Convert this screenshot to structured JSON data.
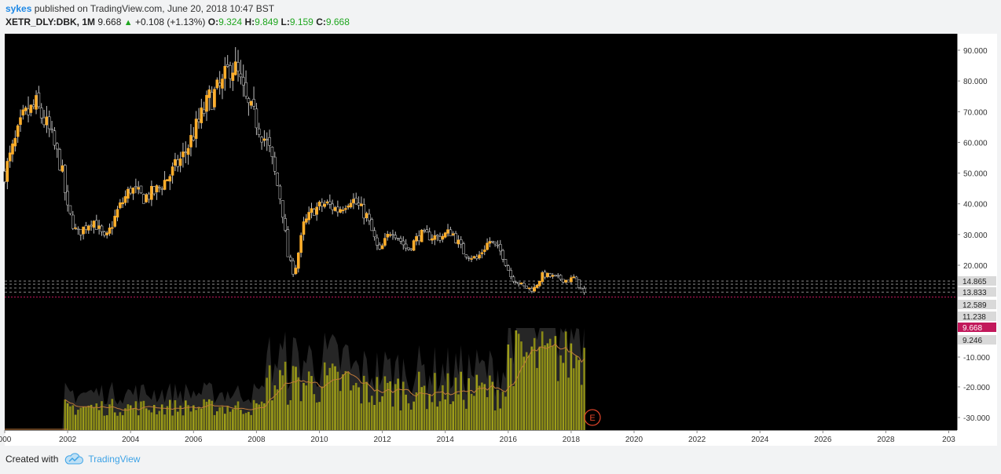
{
  "header": {
    "user": "sykes",
    "published": "published on TradingView.com, June 20, 2018 10:47 BST",
    "symbol": "XETR_DLY:DBK, 1M",
    "last": "9.668",
    "change": "+0.108 (+1.13%)",
    "o_label": "O:",
    "o": "9.324",
    "h_label": "H:",
    "h": "9.849",
    "l_label": "L:",
    "l": "9.159",
    "c_label": "C:",
    "c": "9.668"
  },
  "footer": {
    "created_with": "Created with",
    "brand": "TradingView"
  },
  "colors": {
    "background": "#000000",
    "candle_up": "#ffae2b",
    "candle_down": "#000000",
    "candle_border": "#bdbdbd",
    "volume_bar": "#8a8a16",
    "volume_bar_light": "#9d9d1a",
    "volume_area": "#2a2a2a",
    "volume_ma": "#c07a3a",
    "price_line": "#c2185b",
    "earnings": "#e0442a"
  },
  "chart_data": {
    "type": "candlestick",
    "interval": "1M",
    "x_start_year": 2000,
    "x_end_year": 2030,
    "x_ticks": [
      "000",
      "2002",
      "2004",
      "2006",
      "2008",
      "2010",
      "2012",
      "2014",
      "2016",
      "2018",
      "2020",
      "2022",
      "2024",
      "2026",
      "2028",
      "203"
    ],
    "price_ticks": [
      "90.000",
      "80.000",
      "70.000",
      "60.000",
      "50.000",
      "40.000",
      "30.000",
      "20.000"
    ],
    "price_range": [
      6,
      95
    ],
    "lower_ticks": [
      "-10.000",
      "-20.000",
      "-30.000"
    ],
    "price_labels": [
      "14.865",
      "13.833",
      "12.589",
      "11.238",
      "9.668",
      "9.246"
    ],
    "current_price": "9.668",
    "horizontal_levels": [
      14.865,
      13.833,
      12.589,
      11.238
    ],
    "earnings_marker": "E",
    "anchors": [
      [
        2000.0,
        50
      ],
      [
        2000.6,
        68
      ],
      [
        2001.0,
        72
      ],
      [
        2001.4,
        64
      ],
      [
        2001.8,
        52
      ],
      [
        2002.0,
        38
      ],
      [
        2002.3,
        30
      ],
      [
        2002.8,
        35
      ],
      [
        2003.2,
        28
      ],
      [
        2003.6,
        38
      ],
      [
        2004.0,
        45
      ],
      [
        2004.4,
        42
      ],
      [
        2004.8,
        44
      ],
      [
        2005.3,
        50
      ],
      [
        2005.7,
        56
      ],
      [
        2006.1,
        65
      ],
      [
        2006.5,
        74
      ],
      [
        2006.9,
        78
      ],
      [
        2007.2,
        86
      ],
      [
        2007.4,
        82
      ],
      [
        2007.7,
        72
      ],
      [
        2008.0,
        67
      ],
      [
        2008.4,
        58
      ],
      [
        2008.8,
        40
      ],
      [
        2009.0,
        23
      ],
      [
        2009.2,
        17
      ],
      [
        2009.5,
        33
      ],
      [
        2009.8,
        38
      ],
      [
        2010.2,
        40
      ],
      [
        2010.6,
        38
      ],
      [
        2011.0,
        42
      ],
      [
        2011.5,
        36
      ],
      [
        2011.9,
        24
      ],
      [
        2012.3,
        32
      ],
      [
        2012.8,
        25
      ],
      [
        2013.2,
        30
      ],
      [
        2013.8,
        29
      ],
      [
        2014.2,
        31
      ],
      [
        2014.6,
        24
      ],
      [
        2015.0,
        22
      ],
      [
        2015.4,
        28
      ],
      [
        2015.8,
        24
      ],
      [
        2016.1,
        16
      ],
      [
        2016.5,
        13
      ],
      [
        2016.8,
        12
      ],
      [
        2017.1,
        17
      ],
      [
        2017.5,
        16
      ],
      [
        2017.9,
        15
      ],
      [
        2018.1,
        16
      ],
      [
        2018.3,
        12.5
      ],
      [
        2018.5,
        9.6
      ]
    ]
  }
}
